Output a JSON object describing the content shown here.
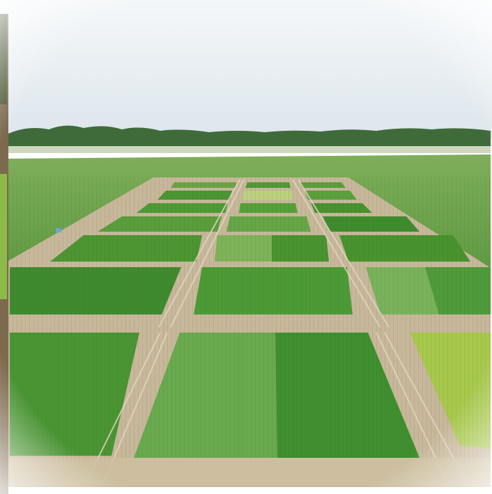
{
  "image": {
    "subject": "aerial-view-crop-trial-field-plots",
    "colors": {
      "sky_top": "#f2f5f8",
      "sky_bottom": "#dfe7ee",
      "treeline": "#3f6b3a",
      "field_far": "#5f9a3e",
      "field_near": "#4e8c36",
      "path": "#c9b79a",
      "plot_dark": "#3f8a2f",
      "plot_mid": "#4f9a35",
      "plot_light": "#6aab45",
      "plot_yellow": "#a9c94e",
      "soil_strip": "#8a7a5a"
    }
  }
}
